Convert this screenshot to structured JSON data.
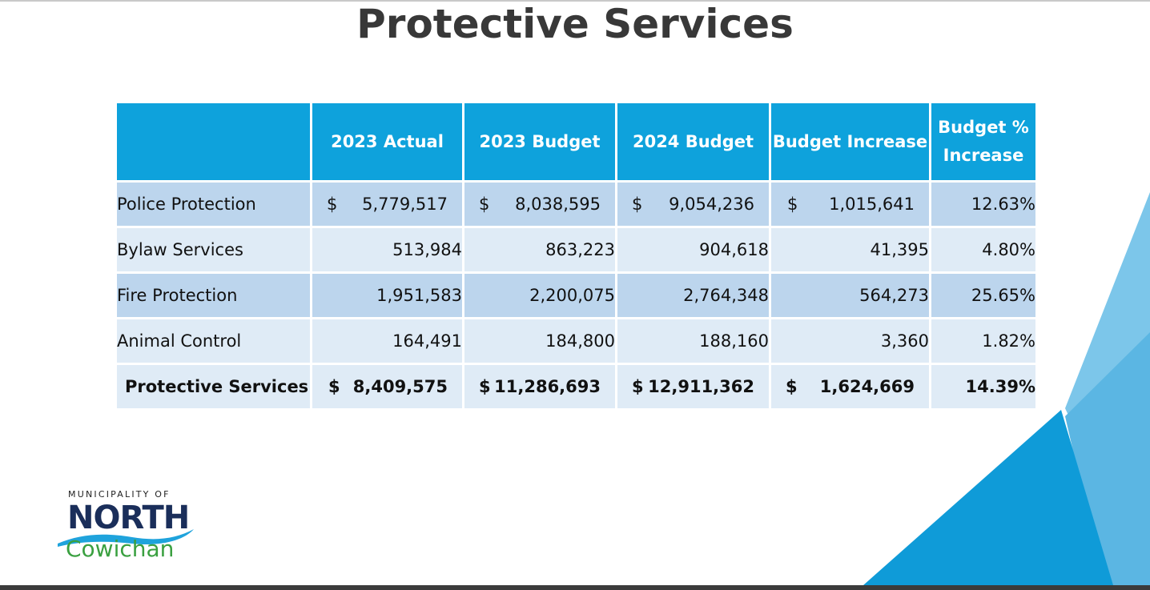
{
  "slide": {
    "title": "Protective Services"
  },
  "table": {
    "headers": [
      "",
      "2023 Actual",
      "2023 Budget",
      "2024 Budget",
      "Budget Increase",
      "Budget % Increase"
    ],
    "rows": [
      {
        "label": "Police Protection",
        "actual_2023": "5,779,517",
        "budget_2023": "8,038,595",
        "budget_2024": "9,054,236",
        "increase": "1,015,641",
        "pct": "12.63%"
      },
      {
        "label": "Bylaw Services",
        "actual_2023": "513,984",
        "budget_2023": "863,223",
        "budget_2024": "904,618",
        "increase": "41,395",
        "pct": "4.80%"
      },
      {
        "label": "Fire Protection",
        "actual_2023": "1,951,583",
        "budget_2023": "2,200,075",
        "budget_2024": "2,764,348",
        "increase": "564,273",
        "pct": "25.65%"
      },
      {
        "label": "Animal Control",
        "actual_2023": "164,491",
        "budget_2023": "184,800",
        "budget_2024": "188,160",
        "increase": "3,360",
        "pct": "1.82%"
      }
    ],
    "total": {
      "label": "Protective Services",
      "actual_2023": "8,409,575",
      "budget_2023": "11,286,693",
      "budget_2024": "12,911,362",
      "increase": "1,624,669",
      "pct": "14.39%"
    },
    "currency_symbol": "$"
  },
  "logo": {
    "small_text": "MUNICIPALITY OF",
    "main_text": "NORTH",
    "sub_text": "Cowichan"
  },
  "colors": {
    "header_bg": "#0ea2dc",
    "row_dark": "#bcd5ed",
    "row_light": "#dfebf6",
    "title": "#383838",
    "accent_dark": "#0f8fcf",
    "accent_light": "#7cc6ea"
  }
}
